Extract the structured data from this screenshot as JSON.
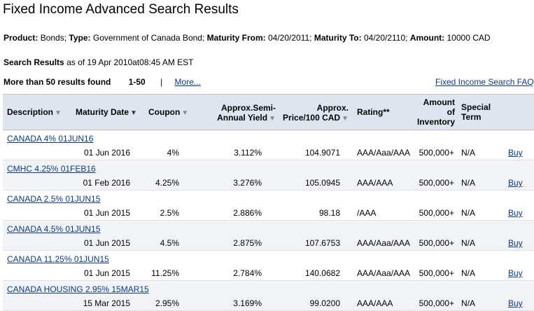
{
  "page": {
    "title": "Fixed Income Advanced Search Results"
  },
  "criteria": {
    "product_label": "Product:",
    "product_value": "Bonds;",
    "type_label": "Type:",
    "type_value": "Government of Canada Bond;",
    "maturity_from_label": "Maturity From:",
    "maturity_from_value": "04/20/2011;",
    "maturity_to_label": "Maturity To:",
    "maturity_to_value": "04/20/2110;",
    "amount_label": "Amount:",
    "amount_value": "10000 CAD"
  },
  "results_meta": {
    "search_results_label": "Search Results",
    "as_of_text": "as of 19 Apr 2010at08:45 AM EST",
    "found_text": "More than 50 results found",
    "range_text": "1-50",
    "separator": "|",
    "more_link": "More...",
    "faq_link": "Fixed Income Search FAQ"
  },
  "table": {
    "headers": {
      "description": "Description",
      "maturity_date": "Maturity Date",
      "coupon": "Coupon",
      "yield_line1": "Approx.Semi-",
      "yield_line2": "Annual Yield",
      "price_line1": "Approx.",
      "price_line2": "Price/100 CAD",
      "rating": "Rating**",
      "amount_line1": "Amount",
      "amount_line2": "of",
      "amount_line3": "Inventory",
      "special_line1": "Special",
      "special_line2": "Term"
    },
    "sort_arrow_glyph": "▼",
    "rows": [
      {
        "description": "CANADA 4% 01JUN16",
        "maturity_date": "01 Jun 2016",
        "coupon": "4%",
        "yield": "3.112%",
        "price": "104.9071",
        "rating": "AAA/Aaa/AAA",
        "inventory": "500,000+",
        "special_term": "N/A",
        "action": "Buy"
      },
      {
        "description": "CMHC 4.25% 01FEB16",
        "maturity_date": "01 Feb 2016",
        "coupon": "4.25%",
        "yield": "3.276%",
        "price": "105.0945",
        "rating": "AAA/AAA",
        "inventory": "500,000+",
        "special_term": "N/A",
        "action": "Buy"
      },
      {
        "description": "CANADA 2.5% 01JUN15",
        "maturity_date": "01 Jun 2015",
        "coupon": "2.5%",
        "yield": "2.886%",
        "price": "98.18",
        "rating": "/AAA",
        "inventory": "500,000+",
        "special_term": "N/A",
        "action": "Buy"
      },
      {
        "description": "CANADA 4.5% 01JUN15",
        "maturity_date": "01 Jun 2015",
        "coupon": "4.5%",
        "yield": "2.875%",
        "price": "107.6753",
        "rating": "AAA/Aaa/AAA",
        "inventory": "500,000+",
        "special_term": "N/A",
        "action": "Buy"
      },
      {
        "description": "CANADA 11.25% 01JUN15",
        "maturity_date": "01 Jun 2015",
        "coupon": "11.25%",
        "yield": "2.784%",
        "price": "140.0682",
        "rating": "AAA/Aaa/AAA",
        "inventory": "500,000+",
        "special_term": "N/A",
        "action": "Buy"
      },
      {
        "description": "CANADA HOUSING 2.95% 15MAR15",
        "maturity_date": "15 Mar 2015",
        "coupon": "2.95%",
        "yield": "3.169%",
        "price": "99.0200",
        "rating": "AAA/AAA",
        "inventory": "500,000+",
        "special_term": "N/A",
        "action": "Buy"
      }
    ]
  },
  "colors": {
    "link": "#0b3a8c",
    "header_bg": "#dfe5ee",
    "alt_row_bg": "#f1f3f7",
    "active_sort_arrow": "#1d3b78"
  }
}
